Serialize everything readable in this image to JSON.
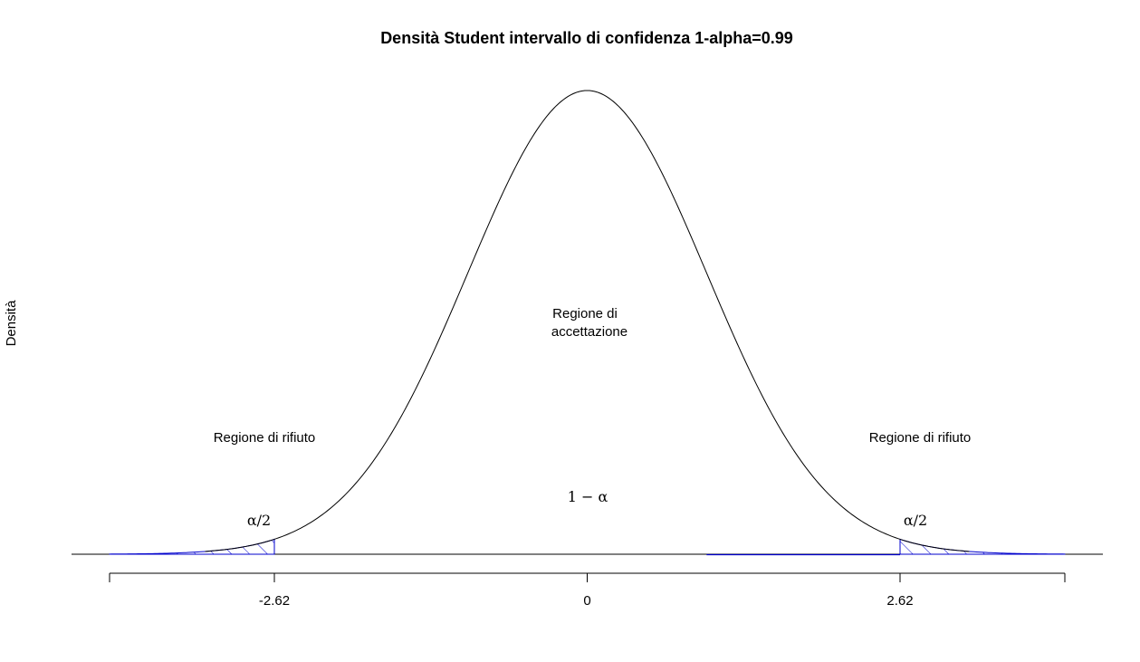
{
  "chart_data": {
    "type": "area",
    "title": "Densità Student intervallo di confidenza 1-alpha=0.99",
    "xlabel": "",
    "ylabel": "Densità",
    "xlim": [
      -4,
      4
    ],
    "ylim": [
      0,
      0.4
    ],
    "xticks": [
      -4,
      -2.62,
      0,
      2.62,
      4
    ],
    "xtick_labels": [
      "",
      "-2.62",
      "0",
      "2.62",
      ""
    ],
    "critical_value": 2.62,
    "peak_density": 0.3989,
    "shaded_color": "#0000cc",
    "curve_color": "#000000",
    "annotations": {
      "left_region": "Regione di rifiuto",
      "right_region": "Regione di rifiuto",
      "center_line1": "Regione di",
      "center_line2": "accettazione",
      "center_prob": "1 − α",
      "left_tail": "α/2",
      "right_tail": "α/2"
    },
    "grid": false,
    "legend": "none"
  }
}
